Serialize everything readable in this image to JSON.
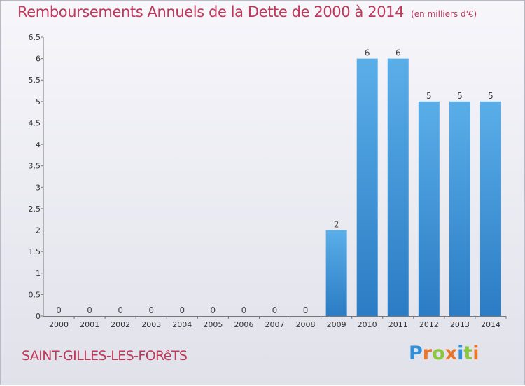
{
  "header": {
    "title": "Remboursements Annuels de la Dette de 2000 à 2014",
    "unit": "(en milliers d'€)"
  },
  "footer": {
    "commune": "SAINT-GILLES-LES-FORêTS",
    "logo_text": "Proxiti",
    "logo_colors": [
      "#2f8fd8",
      "#e8762c",
      "#8cc63f",
      "#e8762c",
      "#2f8fd8",
      "#8cc63f",
      "#e8762c"
    ]
  },
  "chart_data": {
    "type": "bar",
    "title": "Remboursements Annuels de la Dette de 2000 à 2014",
    "xlabel": "",
    "ylabel": "",
    "categories": [
      "2000",
      "2001",
      "2002",
      "2003",
      "2004",
      "2005",
      "2006",
      "2007",
      "2008",
      "2009",
      "2010",
      "2011",
      "2012",
      "2013",
      "2014"
    ],
    "values": [
      0,
      0,
      0,
      0,
      0,
      0,
      0,
      0,
      0,
      2,
      6,
      6,
      5,
      5,
      5
    ],
    "value_labels": [
      "0",
      "0",
      "0",
      "0",
      "0",
      "0",
      "0",
      "0",
      "0",
      "2",
      "6",
      "6",
      "5",
      "5",
      "5"
    ],
    "ylim": [
      0,
      6.5
    ],
    "yticks": [
      0,
      0.5,
      1,
      1.5,
      2,
      2.5,
      3,
      3.5,
      4,
      4.5,
      5,
      5.5,
      6,
      6.5
    ],
    "ytick_labels": [
      "0",
      "0.5",
      "1",
      "1.5",
      "2",
      "2.5",
      "3",
      "3.5",
      "4",
      "4.5",
      "5",
      "5.5",
      "6",
      "6.5"
    ],
    "bar_color": "#3a8fd6",
    "bar_color_light": "#5aaee8",
    "grid": false,
    "legend": "none"
  }
}
